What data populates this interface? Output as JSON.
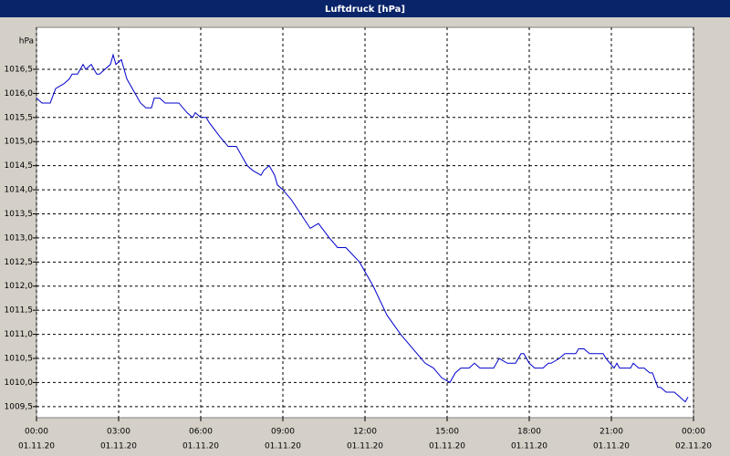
{
  "chart_data": {
    "type": "line",
    "title": "Luftdruck [hPa]",
    "y_label": "hPa",
    "x": [
      0,
      0.2,
      0.5,
      0.7,
      1,
      1.2,
      1.3,
      1.5,
      1.7,
      1.8,
      2,
      2.2,
      2.3,
      2.7,
      2.8,
      2.9,
      3.1,
      3.3,
      3.6,
      3.8,
      4,
      4.2,
      4.3,
      4.5,
      4.7,
      5.2,
      5.5,
      5.7,
      5.8,
      6,
      6.2,
      6.3,
      6.7,
      7,
      7.3,
      7.5,
      7.7,
      7.9,
      8.2,
      8.3,
      8.5,
      8.7,
      8.8,
      9,
      9.3,
      10,
      10.3,
      10.7,
      11,
      11.3,
      11.8,
      12.3,
      12.8,
      13.3,
      13.6,
      13.9,
      14.2,
      14.5,
      14.8,
      15.1,
      15.3,
      15.5,
      15.8,
      16,
      16.2,
      16.7,
      16.9,
      17.2,
      17.5,
      17.7,
      17.8,
      18,
      18.2,
      18.5,
      18.7,
      18.8,
      19.1,
      19.3,
      19.7,
      19.8,
      20,
      20.2,
      20.7,
      20.8,
      21.1,
      21.2,
      21.3,
      21.7,
      21.8,
      22,
      22.2,
      22.4,
      22.5,
      22.7,
      22.8,
      23,
      23.3,
      23.5,
      23.7,
      23.8
    ],
    "series": [
      {
        "name": "Luftdruck",
        "color": "#0000cc",
        "values": [
          1015.9,
          1015.8,
          1015.8,
          1016.1,
          1016.2,
          1016.3,
          1016.4,
          1016.4,
          1016.6,
          1016.5,
          1016.6,
          1016.4,
          1016.4,
          1016.6,
          1016.8,
          1016.6,
          1016.7,
          1016.3,
          1016.0,
          1015.8,
          1015.7,
          1015.7,
          1015.9,
          1015.9,
          1015.8,
          1015.8,
          1015.6,
          1015.5,
          1015.6,
          1015.5,
          1015.5,
          1015.4,
          1015.1,
          1014.9,
          1014.9,
          1014.7,
          1014.5,
          1014.4,
          1014.3,
          1014.4,
          1014.5,
          1014.3,
          1014.1,
          1014.0,
          1013.8,
          1013.2,
          1013.3,
          1013.0,
          1012.8,
          1012.8,
          1012.5,
          1012.0,
          1011.4,
          1011.0,
          1010.8,
          1010.6,
          1010.4,
          1010.3,
          1010.1,
          1010.0,
          1010.2,
          1010.3,
          1010.3,
          1010.4,
          1010.3,
          1010.3,
          1010.5,
          1010.4,
          1010.4,
          1010.6,
          1010.6,
          1010.4,
          1010.3,
          1010.3,
          1010.4,
          1010.4,
          1010.5,
          1010.6,
          1010.6,
          1010.7,
          1010.7,
          1010.6,
          1010.6,
          1010.5,
          1010.3,
          1010.4,
          1010.3,
          1010.3,
          1010.4,
          1010.3,
          1010.3,
          1010.2,
          1010.2,
          1009.9,
          1009.9,
          1009.8,
          1009.8,
          1009.7,
          1009.6,
          1009.7
        ]
      }
    ],
    "xlim": [
      0,
      24
    ],
    "xticks": [
      {
        "value": 0,
        "label": "00:00"
      },
      {
        "value": 3,
        "label": "03:00"
      },
      {
        "value": 6,
        "label": "06:00"
      },
      {
        "value": 9,
        "label": "09:00"
      },
      {
        "value": 12,
        "label": "12:00"
      },
      {
        "value": 15,
        "label": "15:00"
      },
      {
        "value": 18,
        "label": "18:00"
      },
      {
        "value": 21,
        "label": "21:00"
      },
      {
        "value": 24,
        "label": "00:00"
      }
    ],
    "xtick_dates": [
      "01.11.20",
      "01.11.20",
      "01.11.20",
      "01.11.20",
      "01.11.20",
      "01.11.20",
      "01.11.20",
      "01.11.20",
      "02.11.20"
    ],
    "ylim": [
      1009.27,
      1017.37
    ],
    "yticks": [
      {
        "value": 1009.5,
        "label": "1009,5"
      },
      {
        "value": 1010,
        "label": "1010,0"
      },
      {
        "value": 1010.5,
        "label": "1010,5"
      },
      {
        "value": 1011,
        "label": "1011,0"
      },
      {
        "value": 1011.5,
        "label": "1011,5"
      },
      {
        "value": 1012,
        "label": "1012,0"
      },
      {
        "value": 1012.5,
        "label": "1012,5"
      },
      {
        "value": 1013,
        "label": "1013,0"
      },
      {
        "value": 1013.5,
        "label": "1013,5"
      },
      {
        "value": 1014,
        "label": "1014,0"
      },
      {
        "value": 1014.5,
        "label": "1014,5"
      },
      {
        "value": 1015,
        "label": "1015,0"
      },
      {
        "value": 1015.5,
        "label": "1015,5"
      },
      {
        "value": 1016,
        "label": "1016,0"
      },
      {
        "value": 1016.5,
        "label": "1016,5"
      }
    ],
    "grid": true
  }
}
